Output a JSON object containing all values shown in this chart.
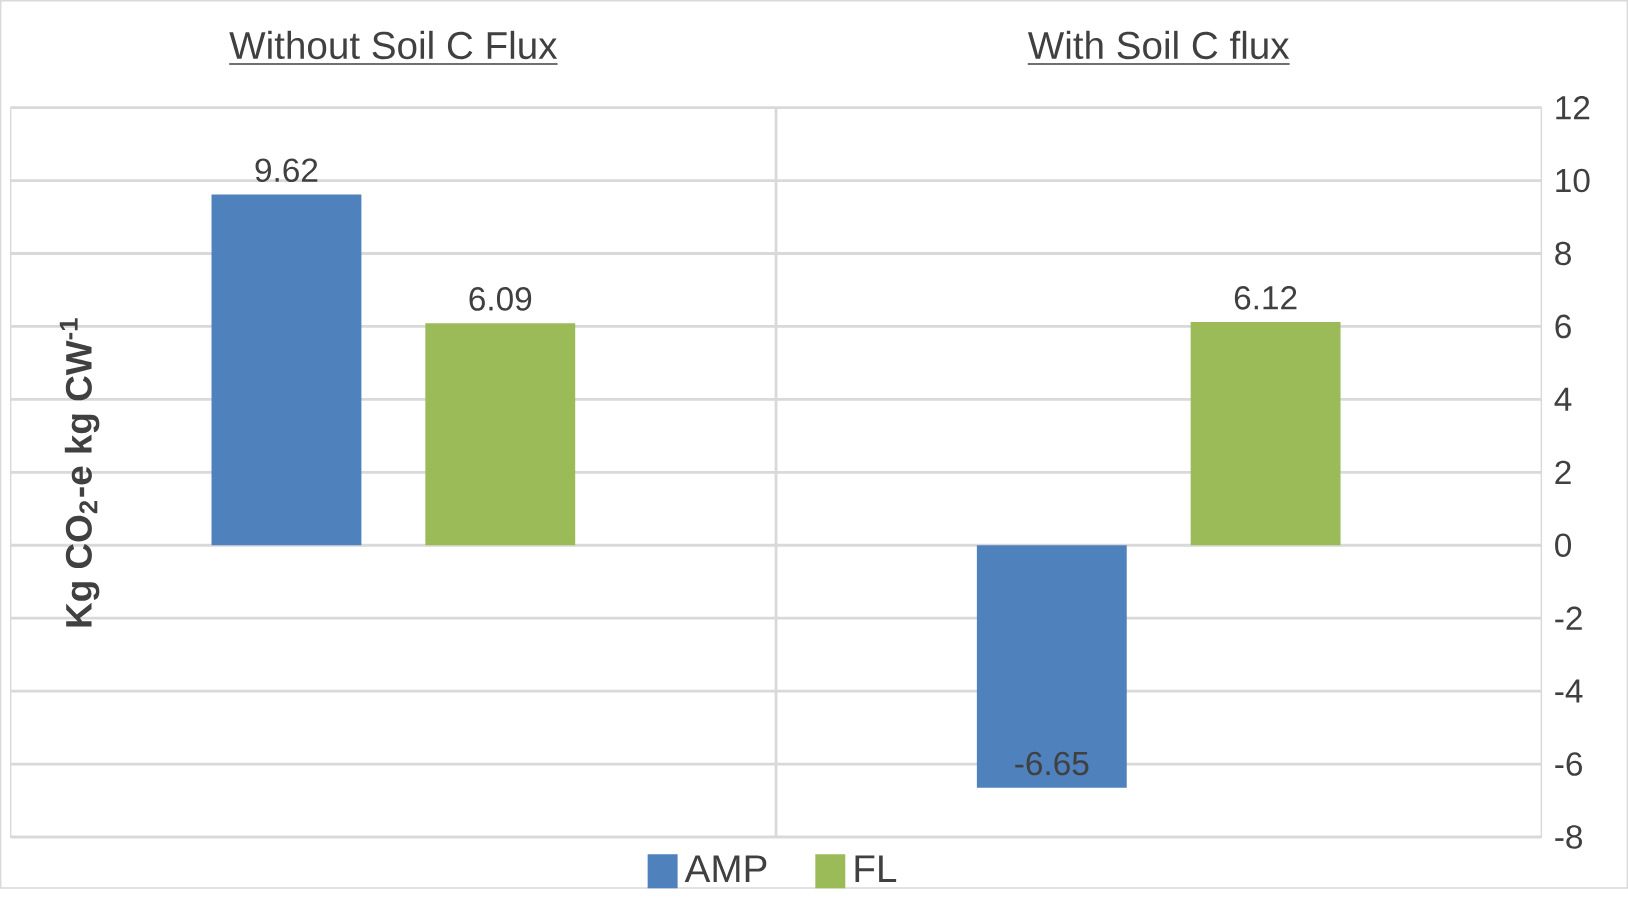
{
  "chart_data": {
    "type": "bar",
    "categories": [
      "Without Soil C Flux",
      "With Soil C flux"
    ],
    "series": [
      {
        "name": "AMP",
        "color": "#4f81bd",
        "values": [
          9.62,
          -6.65
        ]
      },
      {
        "name": "FL",
        "color": "#9bbb59",
        "values": [
          6.09,
          6.12
        ]
      }
    ],
    "ylabel": "Kg CO$_{2}$-e kg CW$^{-1}$",
    "ylim": [
      -8,
      12
    ],
    "yticks": [
      -8,
      -6,
      -4,
      -2,
      0,
      2,
      4,
      6,
      8,
      10,
      12
    ],
    "grid": true,
    "legend": "bottom",
    "data_labels": true
  }
}
